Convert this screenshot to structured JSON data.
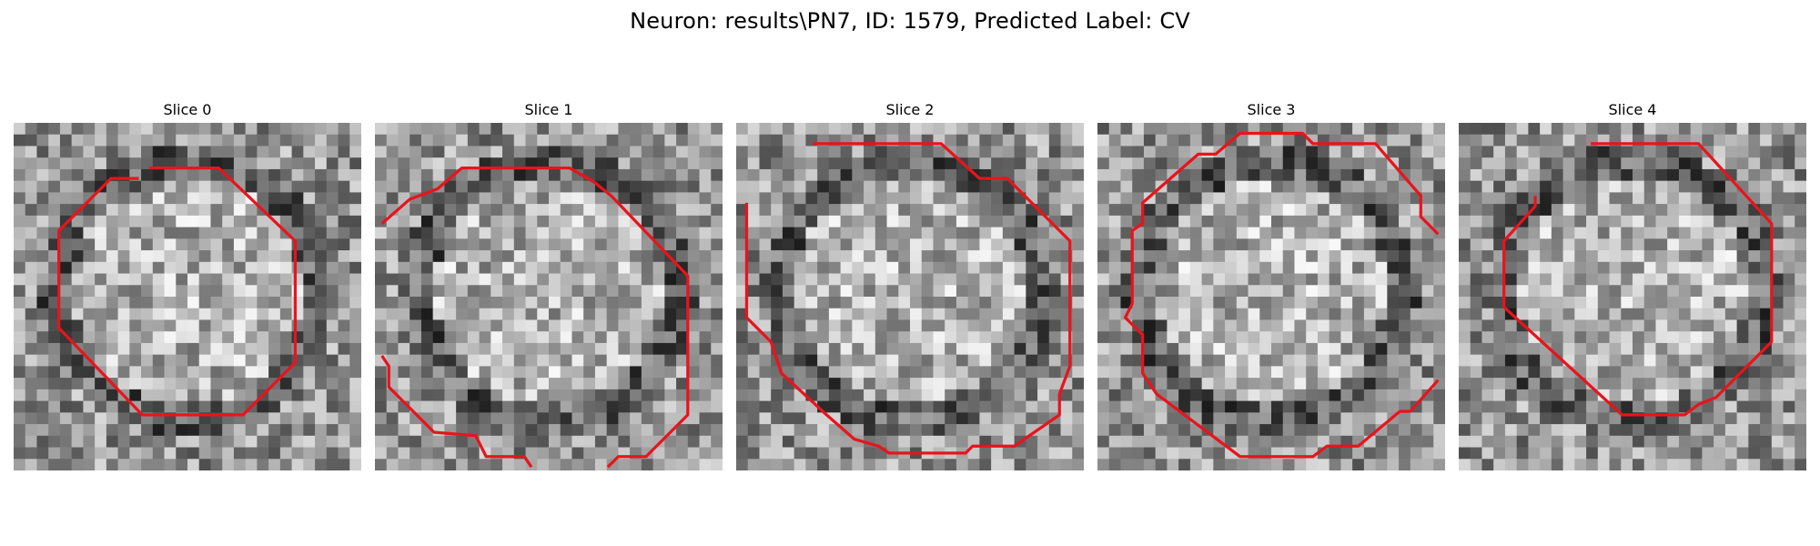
{
  "figure": {
    "title": "Neuron: results\\PN7, ID: 1579, Predicted Label: CV",
    "contour_color": "#e8141c",
    "slices": [
      {
        "label": "Slice 0",
        "seed": 11,
        "contours": [
          [
            [
              0.39,
              0.13
            ],
            [
              0.59,
              0.13
            ],
            [
              0.81,
              0.34
            ],
            [
              0.81,
              0.69
            ],
            [
              0.66,
              0.84
            ],
            [
              0.37,
              0.84
            ],
            [
              0.13,
              0.59
            ],
            [
              0.13,
              0.31
            ],
            [
              0.28,
              0.16
            ],
            [
              0.36,
              0.16
            ]
          ]
        ]
      },
      {
        "label": "Slice 1",
        "seed": 23,
        "contours": [
          [
            [
              0.02,
              0.29
            ],
            [
              0.1,
              0.22
            ],
            [
              0.18,
              0.19
            ],
            [
              0.25,
              0.13
            ],
            [
              0.56,
              0.13
            ],
            [
              0.63,
              0.17
            ],
            [
              0.68,
              0.21
            ],
            [
              0.9,
              0.44
            ],
            [
              0.9,
              0.84
            ],
            [
              0.78,
              0.96
            ],
            [
              0.7,
              0.96
            ],
            [
              0.67,
              0.99
            ]
          ],
          [
            [
              0.02,
              0.67
            ],
            [
              0.04,
              0.7
            ],
            [
              0.04,
              0.76
            ],
            [
              0.17,
              0.89
            ],
            [
              0.29,
              0.9
            ],
            [
              0.32,
              0.96
            ],
            [
              0.43,
              0.96
            ],
            [
              0.45,
              0.99
            ]
          ]
        ]
      },
      {
        "label": "Slice 2",
        "seed": 37,
        "contours": [
          [
            [
              0.22,
              0.06
            ],
            [
              0.59,
              0.06
            ],
            [
              0.7,
              0.16
            ],
            [
              0.78,
              0.16
            ],
            [
              0.96,
              0.34
            ],
            [
              0.96,
              0.7
            ],
            [
              0.93,
              0.78
            ],
            [
              0.93,
              0.84
            ],
            [
              0.8,
              0.93
            ],
            [
              0.68,
              0.93
            ],
            [
              0.66,
              0.95
            ],
            [
              0.44,
              0.95
            ],
            [
              0.41,
              0.93
            ],
            [
              0.34,
              0.91
            ],
            [
              0.26,
              0.84
            ],
            [
              0.13,
              0.72
            ],
            [
              0.1,
              0.63
            ],
            [
              0.03,
              0.56
            ],
            [
              0.03,
              0.23
            ]
          ]
        ]
      },
      {
        "label": "Slice 3",
        "seed": 53,
        "contours": [
          [
            [
              0.98,
              0.32
            ],
            [
              0.93,
              0.27
            ],
            [
              0.93,
              0.21
            ],
            [
              0.8,
              0.06
            ],
            [
              0.62,
              0.06
            ],
            [
              0.59,
              0.03
            ],
            [
              0.41,
              0.03
            ],
            [
              0.34,
              0.09
            ],
            [
              0.29,
              0.09
            ],
            [
              0.13,
              0.23
            ],
            [
              0.13,
              0.29
            ],
            [
              0.1,
              0.31
            ],
            [
              0.1,
              0.52
            ],
            [
              0.08,
              0.56
            ],
            [
              0.13,
              0.61
            ],
            [
              0.13,
              0.72
            ],
            [
              0.17,
              0.78
            ],
            [
              0.41,
              0.96
            ],
            [
              0.62,
              0.96
            ],
            [
              0.66,
              0.93
            ],
            [
              0.75,
              0.93
            ],
            [
              0.87,
              0.83
            ],
            [
              0.9,
              0.83
            ],
            [
              0.98,
              0.74
            ]
          ]
        ]
      },
      {
        "label": "Slice 4",
        "seed": 71,
        "contours": [
          [
            [
              0.38,
              0.06
            ],
            [
              0.69,
              0.06
            ],
            [
              0.9,
              0.29
            ],
            [
              0.9,
              0.63
            ],
            [
              0.74,
              0.79
            ],
            [
              0.69,
              0.81
            ],
            [
              0.65,
              0.84
            ],
            [
              0.47,
              0.84
            ],
            [
              0.13,
              0.53
            ],
            [
              0.13,
              0.34
            ],
            [
              0.22,
              0.24
            ],
            [
              0.22,
              0.21
            ]
          ]
        ]
      }
    ]
  }
}
